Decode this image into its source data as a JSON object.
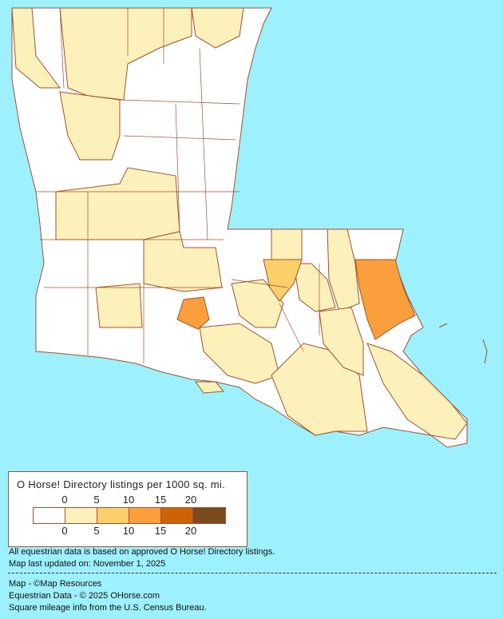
{
  "legend": {
    "title": "O Horse! Directory listings per 1000 sq. mi.",
    "ticks": [
      "0",
      "5",
      "10",
      "15",
      "20"
    ],
    "colors": [
      "#ffffff",
      "#fcf0bb",
      "#fdcf6a",
      "#fb9f3c",
      "#cc6406",
      "#7c4a1f"
    ]
  },
  "notes": {
    "line1": "All equestrian data is based on approved O Horse! Directory listings.",
    "line2": "Map last updated on: November 1, 2025",
    "credit_map": "Map - ©Map Resources",
    "credit_data": "Equestrian Data - © 2025 OHorse.com",
    "credit_census": "Square mileage info from the U.S. Census Bureau."
  },
  "map": {
    "background": "#9df0fd",
    "border_color": "#a0522d"
  }
}
